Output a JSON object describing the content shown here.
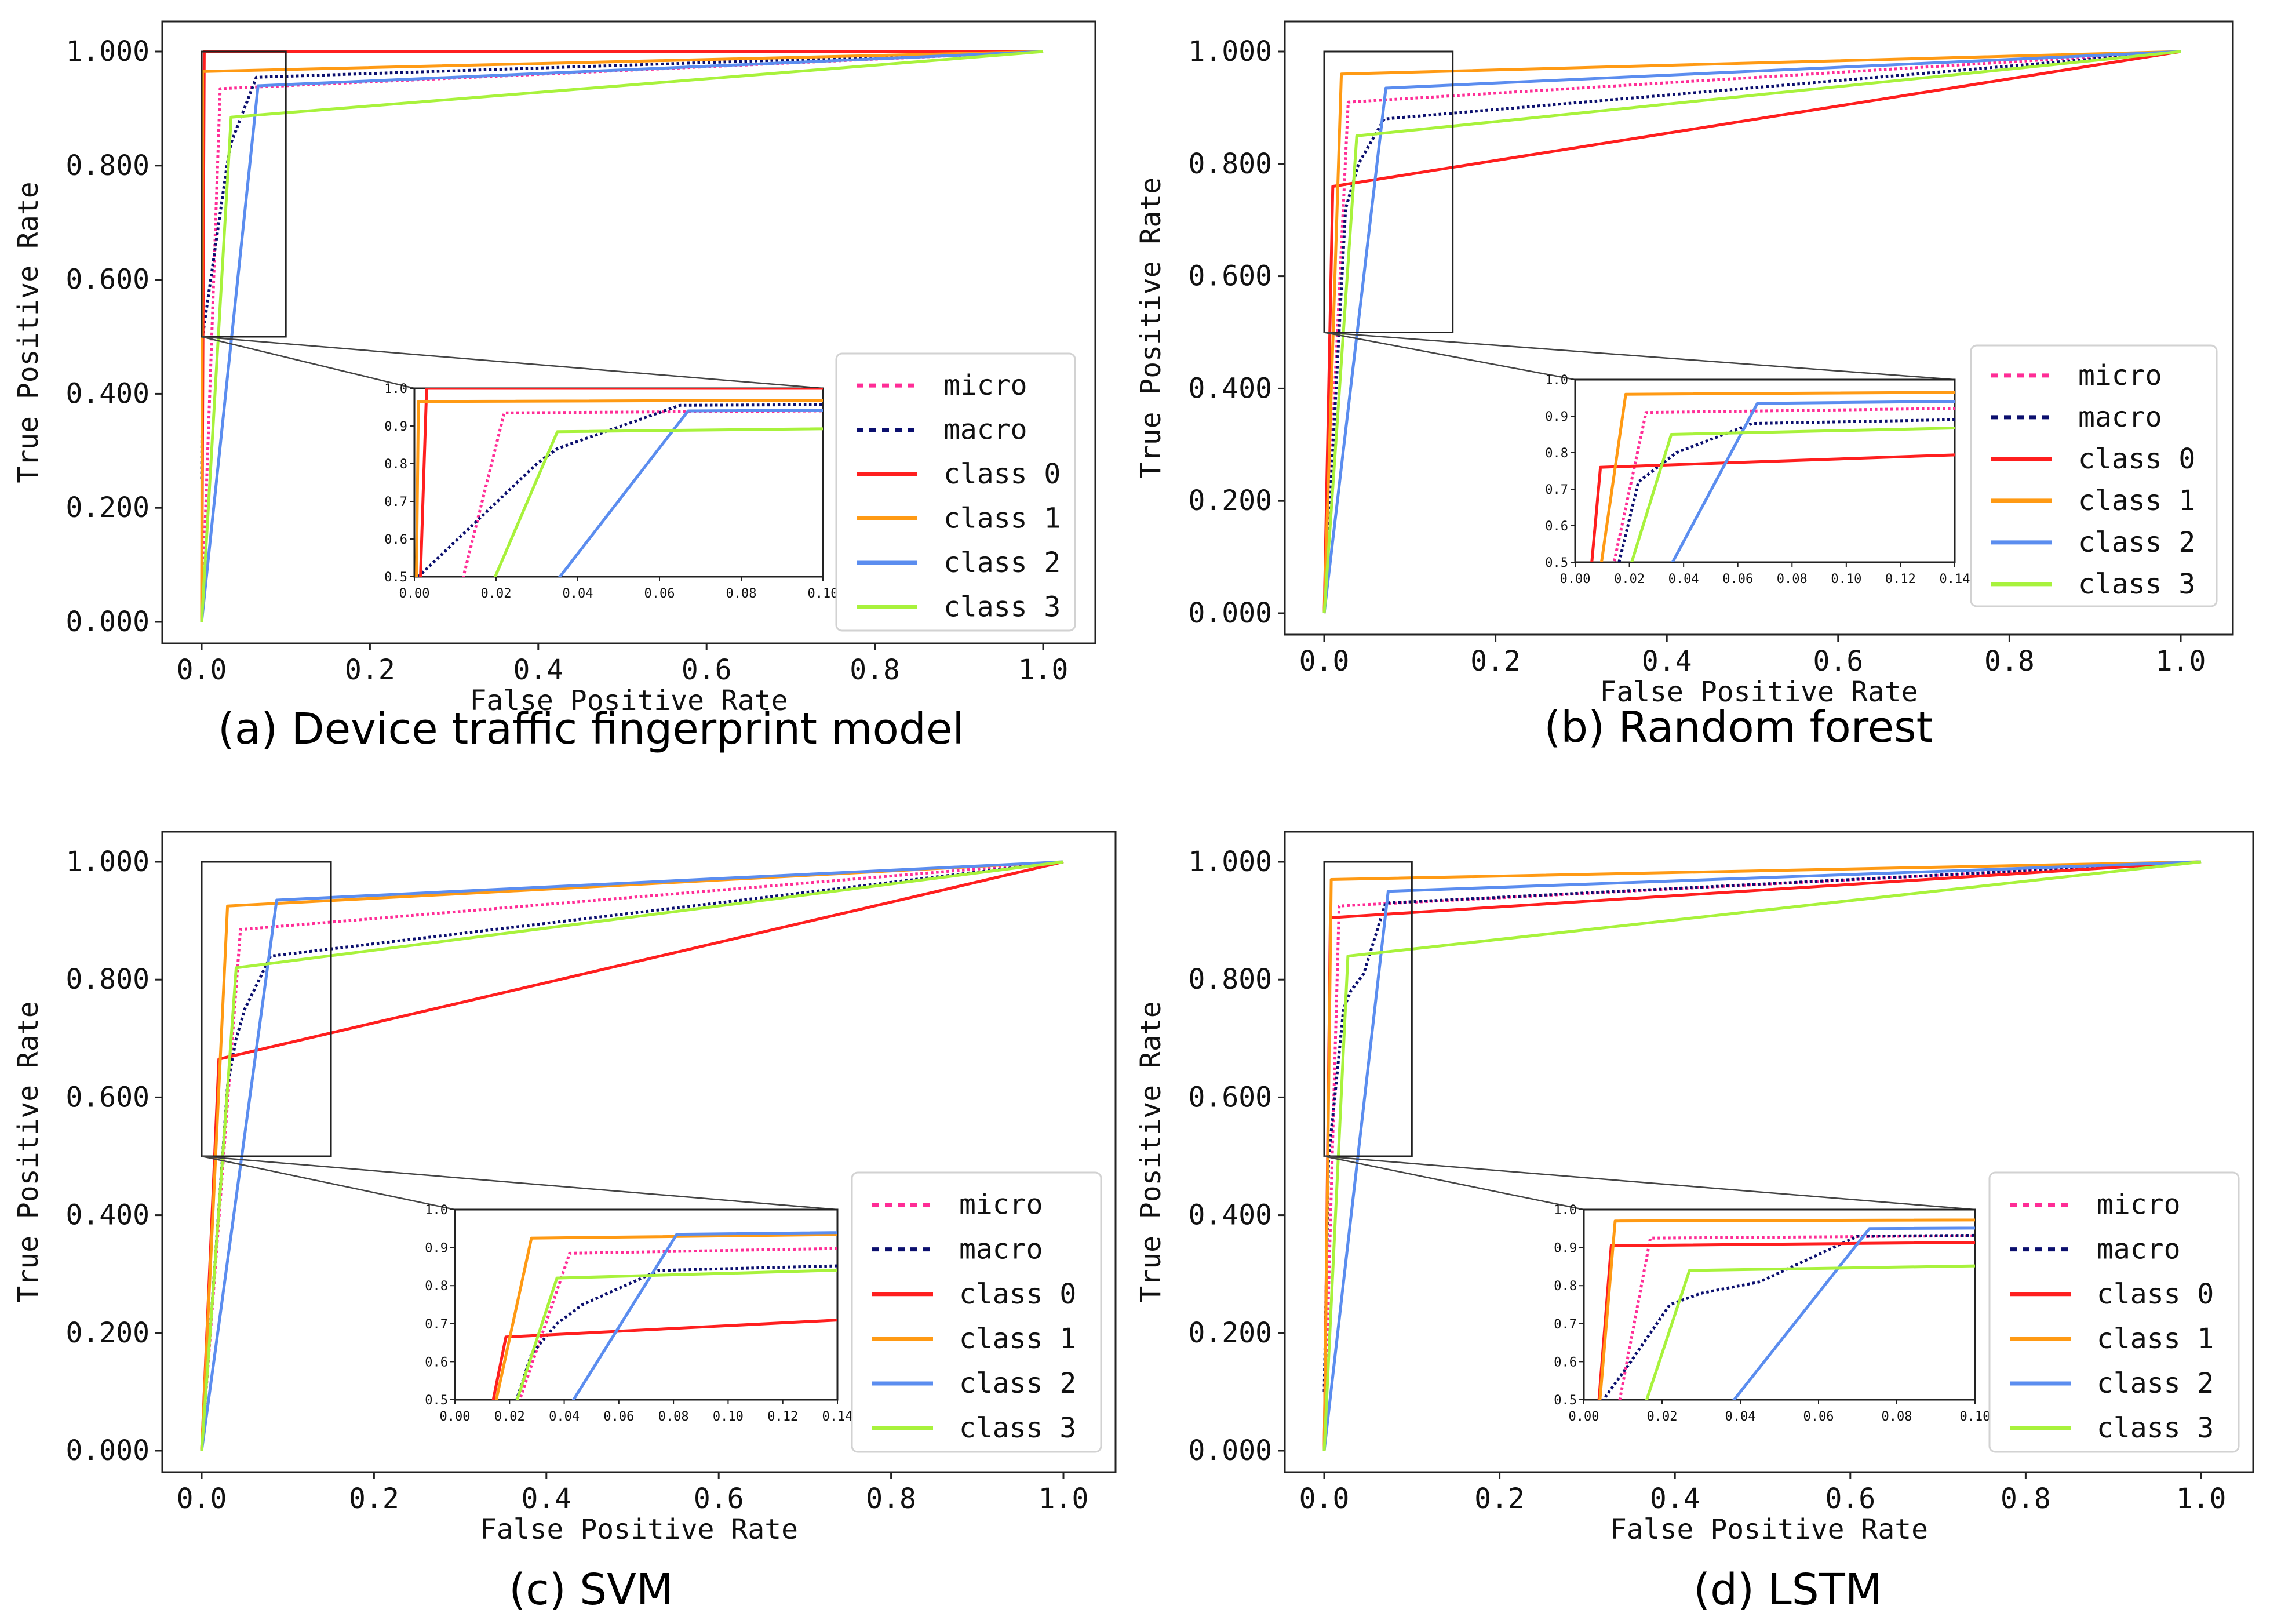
{
  "figure": {
    "legend_entries": [
      "micro",
      "macro",
      "class 0",
      "class 1",
      "class 2",
      "class 3"
    ],
    "series_styles": {
      "micro": {
        "color": "#ff2d96",
        "dash": "dotted"
      },
      "macro": {
        "color": "#0b0f6e",
        "dash": "dotted"
      },
      "class 0": {
        "color": "#ff1f1f",
        "dash": "solid"
      },
      "class 1": {
        "color": "#ff9a14",
        "dash": "solid"
      },
      "class 2": {
        "color": "#5b8def",
        "dash": "solid"
      },
      "class 3": {
        "color": "#a8f23c",
        "dash": "solid"
      }
    }
  },
  "chart_data": [
    {
      "type": "line",
      "caption": "(a) Device traffic fingerprint model",
      "xlabel": "False Positive Rate",
      "ylabel": "True Positive Rate",
      "xlim": [
        0,
        1
      ],
      "ylim": [
        0,
        1
      ],
      "xticks": [
        "0.0",
        "0.2",
        "0.4",
        "0.6",
        "0.8",
        "1.0"
      ],
      "yticks": [
        "0.000",
        "0.200",
        "0.400",
        "0.600",
        "0.800",
        "1.000"
      ],
      "legend": "lower-right",
      "zoom_box": {
        "x": [
          0,
          0.1
        ],
        "y": [
          0.5,
          1.0
        ]
      },
      "inset": {
        "xlim": [
          0,
          0.1
        ],
        "ylim": [
          0.5,
          1.0
        ],
        "xticks": [
          "0.00",
          "0.02",
          "0.04",
          "0.06",
          "0.08",
          "0.10"
        ],
        "yticks": [
          "0.5",
          "0.6",
          "0.7",
          "0.8",
          "0.9",
          "1.0"
        ]
      },
      "series": [
        {
          "name": "micro",
          "x": [
            0,
            0.012,
            0.022,
            1
          ],
          "y": [
            0,
            0.5,
            0.935,
            1
          ]
        },
        {
          "name": "macro",
          "x": [
            0,
            0.001,
            0.03,
            0.035,
            0.065,
            1
          ],
          "y": [
            0.25,
            0.5,
            0.8,
            0.84,
            0.955,
            1
          ]
        },
        {
          "name": "class 0",
          "x": [
            0,
            0.003,
            1
          ],
          "y": [
            0,
            1,
            1
          ]
        },
        {
          "name": "class 1",
          "x": [
            0,
            0.001,
            1
          ],
          "y": [
            0,
            0.965,
            1
          ]
        },
        {
          "name": "class 2",
          "x": [
            0,
            0.067,
            1
          ],
          "y": [
            0,
            0.94,
            1
          ]
        },
        {
          "name": "class 3",
          "x": [
            0,
            0.035,
            1
          ],
          "y": [
            0,
            0.885,
            1
          ]
        }
      ]
    },
    {
      "type": "line",
      "caption": "(b) Random forest",
      "xlabel": "False Positive Rate",
      "ylabel": "True Positive Rate",
      "xlim": [
        0,
        1
      ],
      "ylim": [
        0,
        1
      ],
      "xticks": [
        "0.0",
        "0.2",
        "0.4",
        "0.6",
        "0.8",
        "1.0"
      ],
      "yticks": [
        "0.000",
        "0.200",
        "0.400",
        "0.600",
        "0.800",
        "1.000"
      ],
      "legend": "lower-right",
      "zoom_box": {
        "x": [
          0,
          0.15
        ],
        "y": [
          0.5,
          1.0
        ]
      },
      "inset": {
        "xlim": [
          0,
          0.15
        ],
        "ylim": [
          0.5,
          1.0
        ],
        "xticks": [
          "0.00",
          "0.02",
          "0.04",
          "0.06",
          "0.08",
          "0.10",
          "0.12",
          "0.14"
        ],
        "yticks": [
          "0.5",
          "0.6",
          "0.7",
          "0.8",
          "0.9",
          "1.0"
        ]
      },
      "series": [
        {
          "name": "micro",
          "x": [
            0,
            0.028,
            1
          ],
          "y": [
            0,
            0.91,
            1
          ]
        },
        {
          "name": "macro",
          "x": [
            0,
            0.025,
            0.04,
            0.07,
            1
          ],
          "y": [
            0,
            0.72,
            0.8,
            0.88,
            1
          ]
        },
        {
          "name": "class 0",
          "x": [
            0,
            0.01,
            1
          ],
          "y": [
            0,
            0.76,
            1
          ]
        },
        {
          "name": "class 1",
          "x": [
            0,
            0.02,
            1
          ],
          "y": [
            0,
            0.96,
            1
          ]
        },
        {
          "name": "class 2",
          "x": [
            0,
            0.072,
            1
          ],
          "y": [
            0,
            0.935,
            1
          ]
        },
        {
          "name": "class 3",
          "x": [
            0,
            0.038,
            1
          ],
          "y": [
            0,
            0.85,
            1
          ]
        }
      ]
    },
    {
      "type": "line",
      "caption": "(c) SVM",
      "xlabel": "False Positive Rate",
      "ylabel": "True Positive Rate",
      "xlim": [
        0,
        1
      ],
      "ylim": [
        0,
        1
      ],
      "xticks": [
        "0.0",
        "0.2",
        "0.4",
        "0.6",
        "0.8",
        "1.0"
      ],
      "yticks": [
        "0.000",
        "0.200",
        "0.400",
        "0.600",
        "0.800",
        "1.000"
      ],
      "legend": "lower-right",
      "zoom_box": {
        "x": [
          0,
          0.15
        ],
        "y": [
          0.5,
          1.0
        ]
      },
      "inset": {
        "xlim": [
          0,
          0.15
        ],
        "ylim": [
          0.5,
          1.0
        ],
        "xticks": [
          "0.00",
          "0.02",
          "0.04",
          "0.06",
          "0.08",
          "0.10",
          "0.12",
          "0.14"
        ],
        "yticks": [
          "0.5",
          "0.6",
          "0.7",
          "0.8",
          "0.9",
          "1.0"
        ]
      },
      "series": [
        {
          "name": "micro",
          "x": [
            0,
            0.045,
            1
          ],
          "y": [
            0,
            0.885,
            1
          ]
        },
        {
          "name": "macro",
          "x": [
            0,
            0.03,
            0.04,
            0.05,
            0.08,
            1
          ],
          "y": [
            0,
            0.62,
            0.7,
            0.75,
            0.84,
            1
          ]
        },
        {
          "name": "class 0",
          "x": [
            0,
            0.02,
            1
          ],
          "y": [
            0,
            0.665,
            1
          ]
        },
        {
          "name": "class 1",
          "x": [
            0,
            0.03,
            1
          ],
          "y": [
            0,
            0.925,
            1
          ]
        },
        {
          "name": "class 2",
          "x": [
            0,
            0.087,
            1
          ],
          "y": [
            0,
            0.935,
            1
          ]
        },
        {
          "name": "class 3",
          "x": [
            0,
            0.04,
            1
          ],
          "y": [
            0,
            0.82,
            1
          ]
        }
      ]
    },
    {
      "type": "line",
      "caption": "(d) LSTM",
      "xlabel": "False Positive Rate",
      "ylabel": "True Positive Rate",
      "xlim": [
        0,
        1
      ],
      "ylim": [
        0,
        1
      ],
      "xticks": [
        "0.0",
        "0.2",
        "0.4",
        "0.6",
        "0.8",
        "1.0"
      ],
      "yticks": [
        "0.000",
        "0.200",
        "0.400",
        "0.600",
        "0.800",
        "1.000"
      ],
      "legend": "lower-right",
      "zoom_box": {
        "x": [
          0,
          0.1
        ],
        "y": [
          0.5,
          1.0
        ]
      },
      "inset": {
        "xlim": [
          0,
          0.1
        ],
        "ylim": [
          0.5,
          1.0
        ],
        "xticks": [
          "0.00",
          "0.02",
          "0.04",
          "0.06",
          "0.08",
          "0.10"
        ],
        "yticks": [
          "0.5",
          "0.6",
          "0.7",
          "0.8",
          "0.9",
          "1.0"
        ]
      },
      "series": [
        {
          "name": "micro",
          "x": [
            0,
            0.017,
            1
          ],
          "y": [
            0,
            0.925,
            1
          ]
        },
        {
          "name": "macro",
          "x": [
            0,
            0.005,
            0.012,
            0.022,
            0.03,
            0.045,
            0.07,
            1
          ],
          "y": [
            0.1,
            0.5,
            0.6,
            0.75,
            0.78,
            0.81,
            0.93,
            1
          ]
        },
        {
          "name": "class 0",
          "x": [
            0,
            0.007,
            1
          ],
          "y": [
            0,
            0.905,
            1
          ]
        },
        {
          "name": "class 1",
          "x": [
            0,
            0.008,
            1
          ],
          "y": [
            0,
            0.97,
            1
          ]
        },
        {
          "name": "class 2",
          "x": [
            0,
            0.073,
            1
          ],
          "y": [
            0,
            0.95,
            1
          ]
        },
        {
          "name": "class 3",
          "x": [
            0,
            0.027,
            1
          ],
          "y": [
            0,
            0.84,
            1
          ]
        }
      ]
    }
  ]
}
